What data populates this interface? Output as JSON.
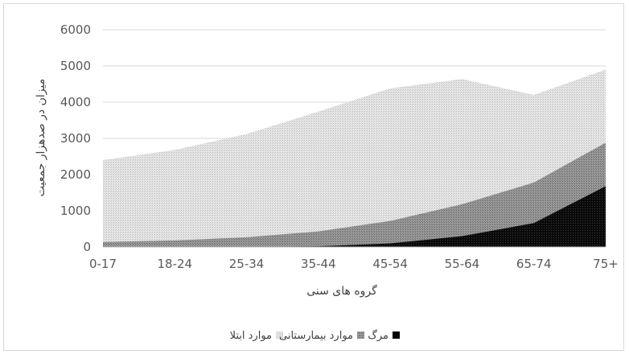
{
  "chart_data": {
    "type": "area",
    "categories": [
      "0-17",
      "18-24",
      "25-34",
      "35-44",
      "45-54",
      "55-64",
      "65-74",
      "75+"
    ],
    "series": [
      {
        "name": "موارد ابتلا",
        "values": [
          2400,
          2680,
          3120,
          3740,
          4380,
          4640,
          4200,
          4900
        ],
        "color": "#d9d9d9"
      },
      {
        "name": "موارد بیمارستانی",
        "values": [
          140,
          180,
          270,
          430,
          720,
          1180,
          1780,
          2880
        ],
        "color": "#8c8c8c"
      },
      {
        "name": "مرگ",
        "values": [
          0,
          0,
          0,
          20,
          100,
          300,
          660,
          1680
        ],
        "color": "#0d0d0d"
      }
    ],
    "xlabel": "گروه های سنی",
    "ylabel": "میزان در صدهزار جمعیت",
    "ylim": [
      0,
      6000
    ],
    "yticks": [
      0,
      1000,
      2000,
      3000,
      4000,
      5000,
      6000
    ],
    "grid": true,
    "legend_position": "bottom"
  }
}
